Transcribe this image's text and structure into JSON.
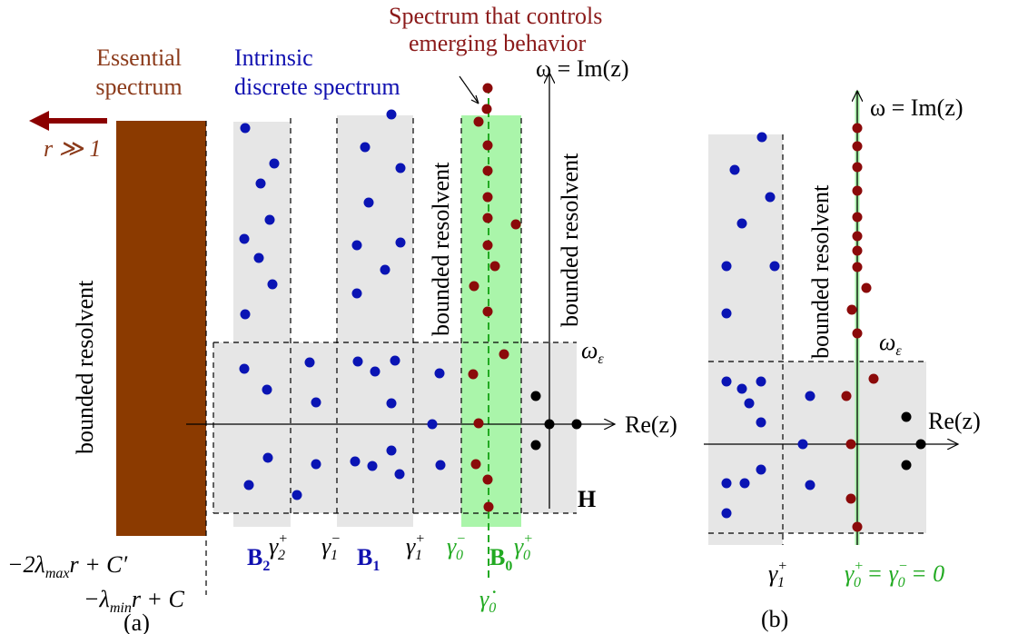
{
  "panel_a": {
    "essential_label_1": "Essential",
    "essential_label_2": "spectrum",
    "r_label": "r ≫ 1",
    "intrinsic_label_1": "Intrinsic",
    "intrinsic_label_2": "discrete spectrum",
    "controls_label_1": "Spectrum that controls",
    "controls_label_2": "emerging behavior",
    "omega_axis": "ω = Im(z)",
    "re_axis": "Re(z)",
    "omega_eps": "ω",
    "omega_eps_sub": "ε",
    "H": "H",
    "bounded_left": "bounded resolvent",
    "bounded_mid": "bounded resolvent",
    "bounded_right": "bounded resolvent",
    "caption": "(a)",
    "lam_max_1": "−2λ",
    "lam_max_sub": "max",
    "lam_max_2": "r + C′",
    "lam_min_1": "−λ",
    "lam_min_sub": "min",
    "lam_min_2": "r + C",
    "gamma2_plus": "γ",
    "gamma2_plus_sup": "+",
    "gamma2_plus_sub": "2",
    "B2": "B",
    "B2_sub": "2",
    "gamma1_minus": "γ",
    "gamma1_minus_sup": "−",
    "gamma1_minus_sub": "1",
    "B1": "B",
    "B1_sub": "1",
    "gamma1_plus": "γ",
    "gamma1_plus_sup": "+",
    "gamma1_plus_sub": "1",
    "gamma0_minus": "γ",
    "gamma0_minus_sup": "−",
    "gamma0_minus_sub": "0",
    "B0": "B",
    "B0_sub": "0",
    "gamma0_plus": "γ",
    "gamma0_plus_sup": "+",
    "gamma0_plus_sub": "0",
    "gamma0_dot": "γ̇",
    "gamma0_dot_sub": "0"
  },
  "panel_b": {
    "omega_axis": "ω = Im(z)",
    "re_axis": "Re(z)",
    "omega_eps": "ω",
    "omega_eps_sub": "ε",
    "bounded": "bounded resolvent",
    "gamma1_plus": "γ",
    "gamma1_plus_sup": "+",
    "gamma1_plus_sub": "1",
    "gamma0_eq": "γ",
    "gamma0_eq_sup": "+",
    "gamma0_eq_sub": "0",
    "gamma0_eq_2": " = γ",
    "gamma0_eq_sup2": "−",
    "gamma0_eq_sub2": "0",
    "gamma0_eq_3": " = 0",
    "caption": "(b)"
  },
  "colors": {
    "brown_region": "#8b3a00",
    "arrow_red": "#8b0000",
    "blue_dot": "#0a14b4",
    "red_dot": "#8b0a0a",
    "black_dot": "#000000",
    "gray_region": "#e6e6e6",
    "green_region": "#aaf5aa",
    "green_line": "#22aa22"
  }
}
